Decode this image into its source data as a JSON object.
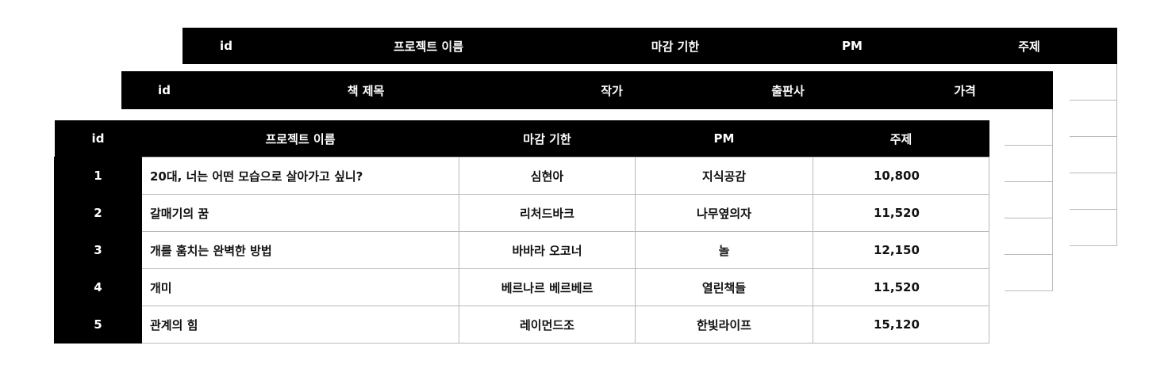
{
  "sheets": {
    "back": {
      "headers": [
        "id",
        "프로젝트 이름",
        "마감 기한",
        "PM",
        "주제"
      ]
    },
    "middle": {
      "headers": [
        "id",
        "책 제목",
        "작가",
        "출판사",
        "가격"
      ]
    },
    "front": {
      "headers": [
        "id",
        "프로젝트 이름",
        "마감 기한",
        "PM",
        "주제"
      ],
      "rows": [
        {
          "id": "1",
          "title": "20대, 너는 어떤 모습으로 살아가고 싶니?",
          "author": "심현아",
          "publisher": "지식공감",
          "price": "10,800"
        },
        {
          "id": "2",
          "title": "갈매기의 꿈",
          "author": "리처드바크",
          "publisher": "나무옆의자",
          "price": "11,520"
        },
        {
          "id": "3",
          "title": "개를 훔치는 완벽한 방법",
          "author": "바바라 오코너",
          "publisher": "놀",
          "price": "12,150"
        },
        {
          "id": "4",
          "title": "개미",
          "author": "베르나르 베르베르",
          "publisher": "열린책들",
          "price": "11,520"
        },
        {
          "id": "5",
          "title": "관계의 힘",
          "author": "레이먼드조",
          "publisher": "한빛라이프",
          "price": "15,120"
        }
      ]
    }
  }
}
